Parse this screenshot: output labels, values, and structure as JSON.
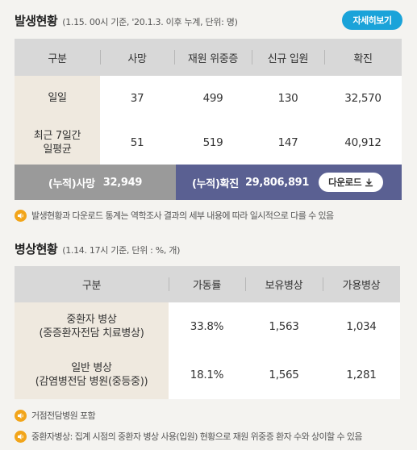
{
  "outbreak": {
    "title": "발생현황",
    "subtitle": "(1.15. 00시 기준, '20.1.3. 이후 누계, 단위: 명)",
    "detail_button": "자세히보기",
    "headers": [
      "구분",
      "사망",
      "재원 위중증",
      "신규 입원",
      "확진"
    ],
    "rows": [
      {
        "label": "일일",
        "values": [
          "37",
          "499",
          "130",
          "32,570"
        ]
      },
      {
        "label": "최근 7일간\n일평균",
        "values": [
          "51",
          "519",
          "147",
          "40,912"
        ]
      }
    ],
    "cumulative": {
      "death_label": "(누적)사망",
      "death_value": "32,949",
      "confirmed_label": "(누적)확진",
      "confirmed_value": "29,806,891",
      "download_label": "다운로드"
    },
    "note": "발생현황과 다운로드 통계는 역학조사 결과의 세부 내용에 따라 일시적으로 다를 수 있음"
  },
  "beds": {
    "title": "병상현황",
    "subtitle": "(1.14. 17시 기준, 단위 : %, 개)",
    "headers": [
      "구분",
      "가동률",
      "보유병상",
      "가용병상"
    ],
    "rows": [
      {
        "label": "중환자 병상\n(중증환자전담 치료병상)",
        "values": [
          "33.8%",
          "1,563",
          "1,034"
        ]
      },
      {
        "label": "일반 병상\n(감염병전담 병원(중등중))",
        "values": [
          "18.1%",
          "1,565",
          "1,281"
        ]
      }
    ],
    "notes": [
      "거점전담병원 포함",
      "중환자병상: 집계 시점의 중환자 병상 사용(입원) 현황으로 재원 위중증 환자 수와 상이할 수 있음"
    ]
  },
  "colors": {
    "accent_blue": "#1aa3d9",
    "cumulative_gray": "#9a9a9a",
    "cumulative_navy": "#5a6092",
    "speaker_orange": "#f2a51a"
  }
}
